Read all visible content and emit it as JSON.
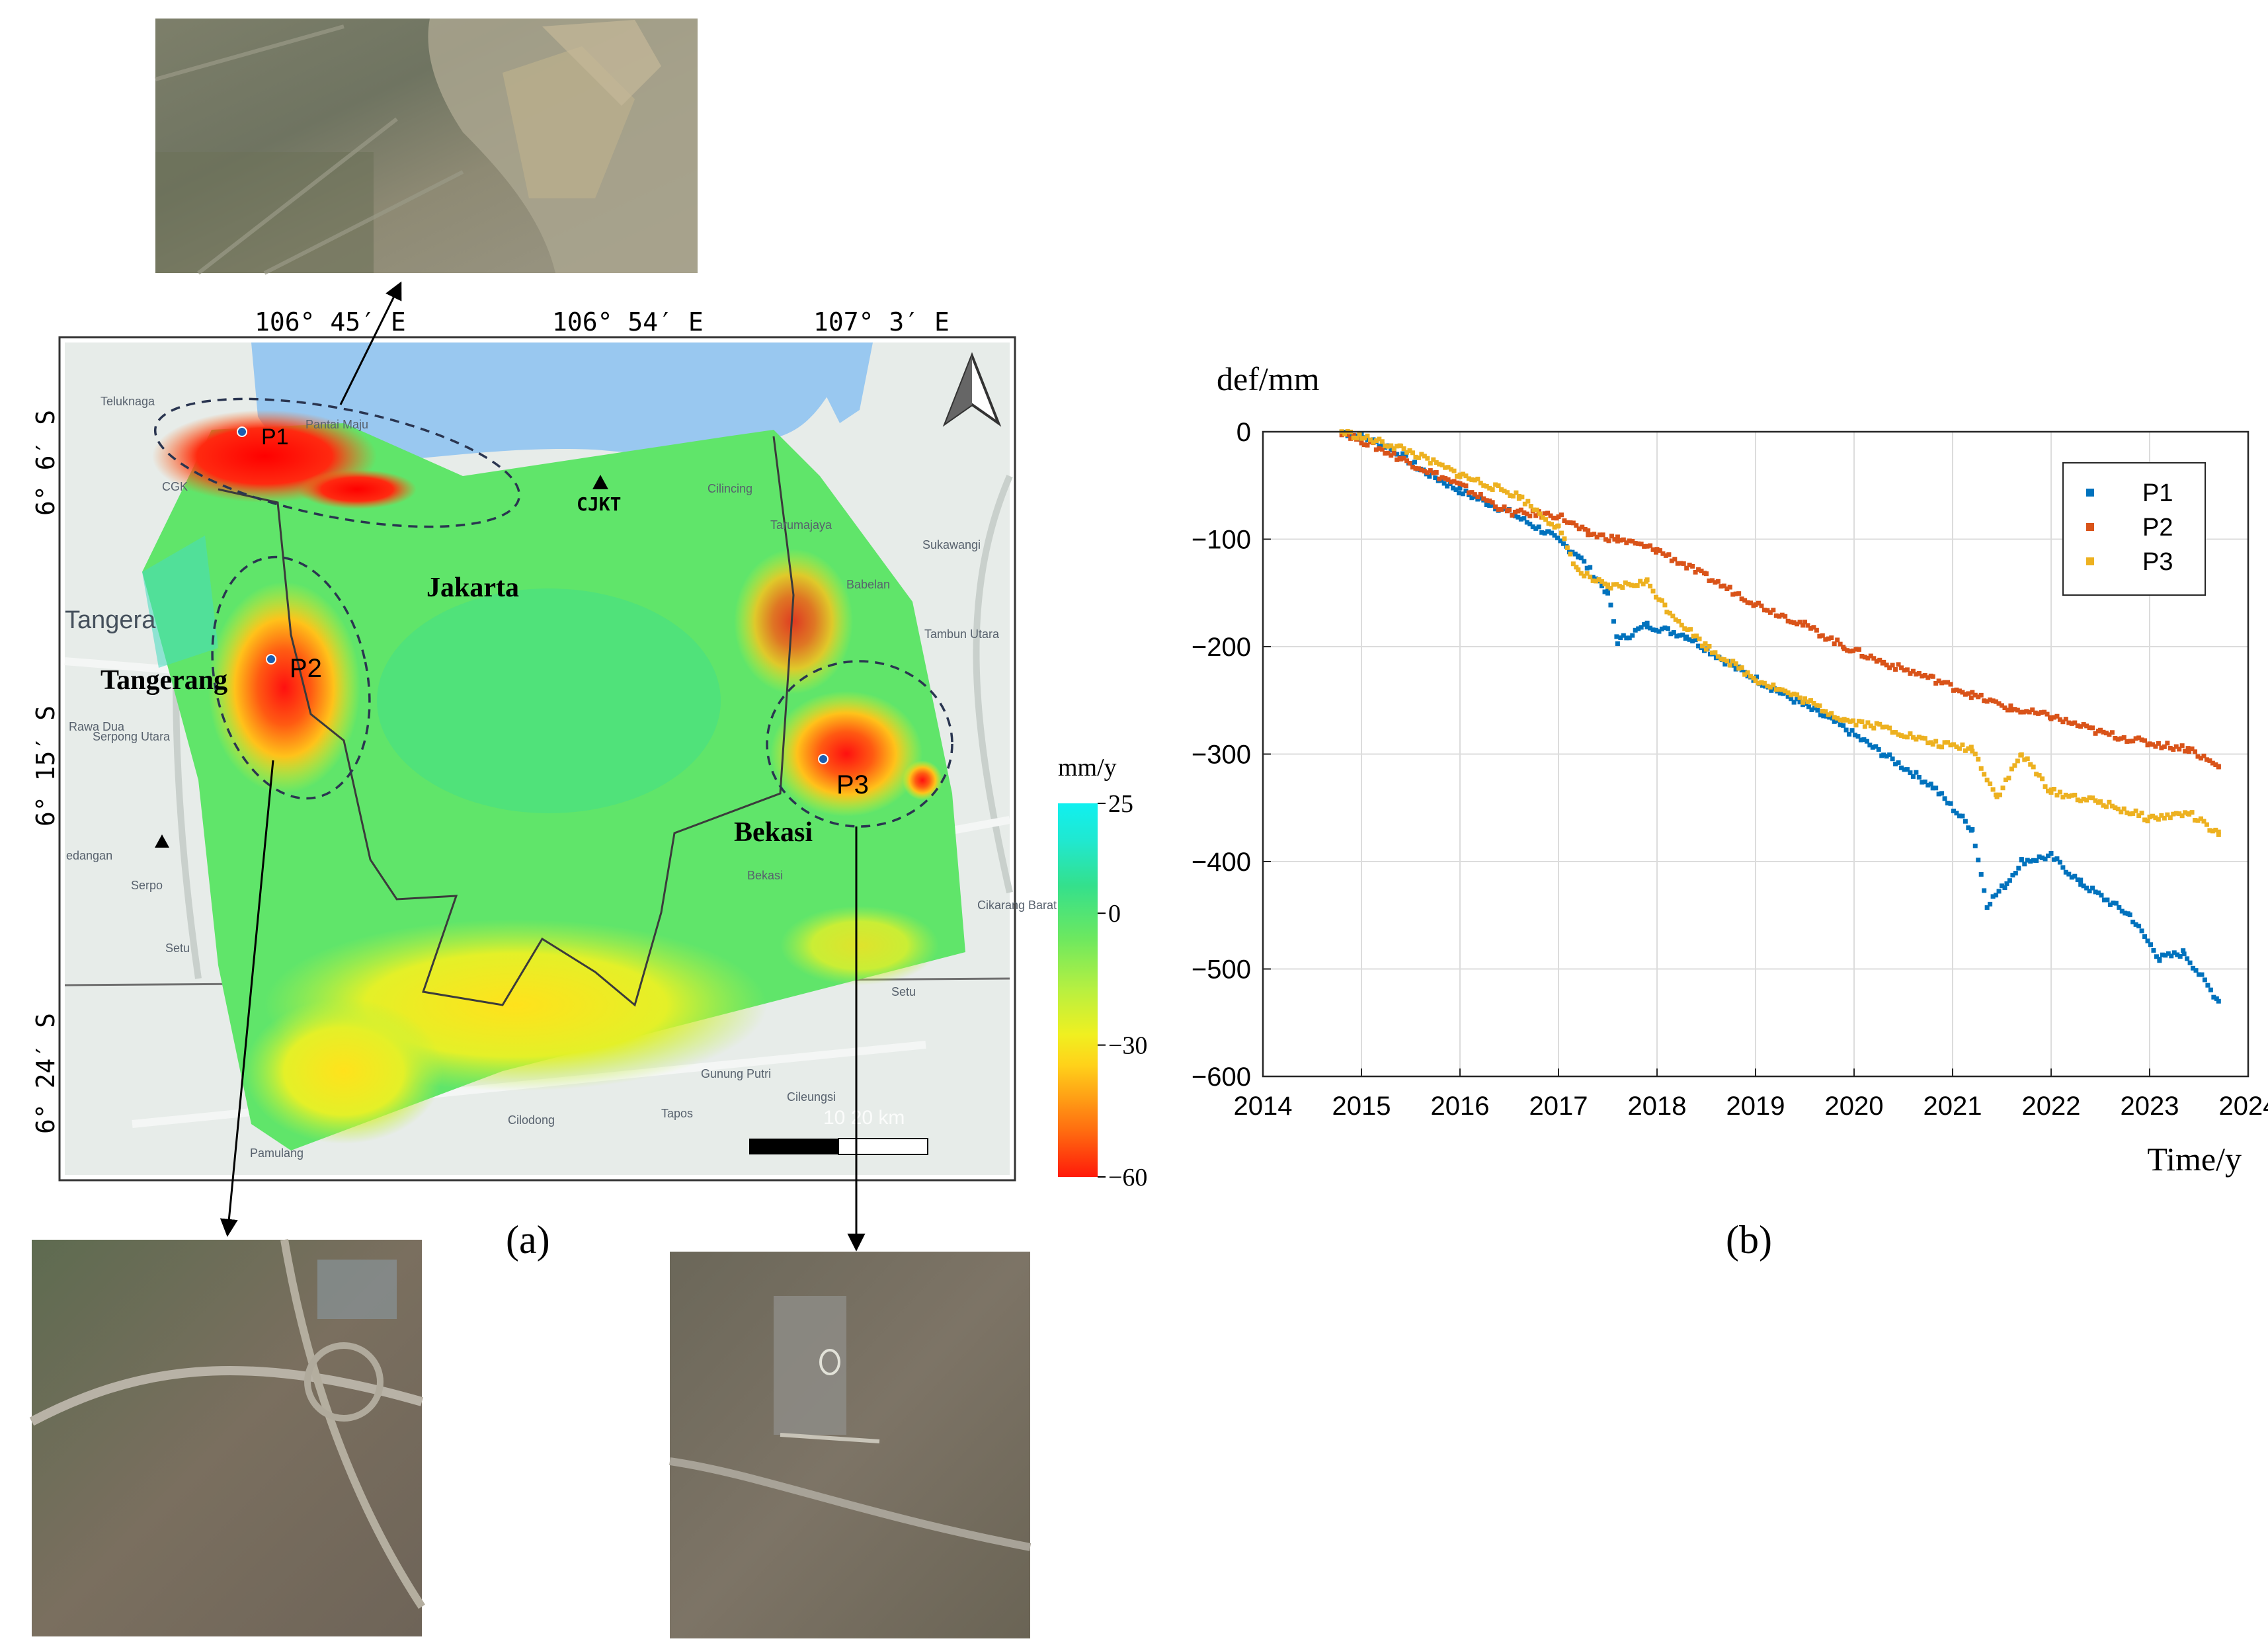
{
  "panel_a": {
    "label": "(a)",
    "lon_ticks": [
      "106° 45′ E",
      "106° 54′ E",
      "107° 3′ E"
    ],
    "lat_ticks": [
      "6° 6′ S",
      "6° 15′ S",
      "6° 24′ S"
    ],
    "regions": [
      "Jakarta",
      "Tangerang",
      "Bekasi"
    ],
    "points": [
      "P1",
      "P2",
      "P3"
    ],
    "station": "CJKT",
    "basemap_labels": [
      "Teluknaga",
      "Pantai Maju",
      "CGK",
      "Tangera",
      "Rawa Dua",
      "Serpong Utara",
      "Serpo",
      "edangan",
      "Setu",
      "Pamulang",
      "Sukawangi",
      "Babelan",
      "Tambun Utara",
      "Tarumajaya",
      "Cikarang Barat",
      "Setu",
      "Gunung Putri",
      "Cileungsi",
      "Tapos",
      "Cilodong",
      "Cilincing",
      "Bekasi"
    ],
    "scale_label": "10  20 km",
    "colorbar": {
      "unit": "mm/y",
      "ticks": [
        "25",
        "0",
        "−30",
        "−60"
      ],
      "tick_values": [
        25,
        0,
        -30,
        -60
      ],
      "range": [
        -60,
        25
      ],
      "colors": [
        "#ff1a0a",
        "#ff6a10",
        "#ffd21a",
        "#f0f020",
        "#b8f040",
        "#6ce860",
        "#34e08c",
        "#20e8d0",
        "#10f0f0"
      ]
    },
    "colors": {
      "sea": "#99c8f0",
      "land": "#e7ece9",
      "dashed": "#2a3550",
      "point": "#1b5fb0"
    }
  },
  "panel_b": {
    "label": "(b)"
  },
  "chart_data": {
    "type": "scatter",
    "title": "",
    "xlabel": "Time/y",
    "ylabel": "def/mm",
    "xlim": [
      2014,
      2024
    ],
    "ylim": [
      -600,
      0
    ],
    "xticks": [
      2014,
      2015,
      2016,
      2017,
      2018,
      2019,
      2020,
      2021,
      2022,
      2023,
      2024
    ],
    "yticks": [
      0,
      -100,
      -200,
      -300,
      -400,
      -500,
      -600
    ],
    "grid": true,
    "legend_position": "top-right",
    "series": [
      {
        "name": "P1",
        "color": "#0072bd",
        "knots": [
          [
            2014.8,
            0
          ],
          [
            2015.0,
            -5
          ],
          [
            2015.3,
            -15
          ],
          [
            2015.6,
            -35
          ],
          [
            2016.0,
            -55
          ],
          [
            2016.5,
            -75
          ],
          [
            2016.9,
            -95
          ],
          [
            2017.2,
            -115
          ],
          [
            2017.5,
            -150
          ],
          [
            2017.6,
            -195
          ],
          [
            2017.9,
            -180
          ],
          [
            2018.3,
            -190
          ],
          [
            2018.8,
            -220
          ],
          [
            2019.3,
            -245
          ],
          [
            2019.8,
            -270
          ],
          [
            2020.3,
            -300
          ],
          [
            2020.8,
            -330
          ],
          [
            2021.2,
            -370
          ],
          [
            2021.35,
            -440
          ],
          [
            2021.55,
            -420
          ],
          [
            2021.7,
            -400
          ],
          [
            2022.0,
            -395
          ],
          [
            2022.3,
            -420
          ],
          [
            2022.8,
            -450
          ],
          [
            2023.1,
            -490
          ],
          [
            2023.35,
            -485
          ],
          [
            2023.7,
            -530
          ]
        ]
      },
      {
        "name": "P2",
        "color": "#d95319",
        "knots": [
          [
            2014.8,
            0
          ],
          [
            2015.0,
            -8
          ],
          [
            2015.4,
            -25
          ],
          [
            2016.0,
            -50
          ],
          [
            2016.5,
            -75
          ],
          [
            2017.0,
            -78
          ],
          [
            2017.3,
            -95
          ],
          [
            2017.6,
            -100
          ],
          [
            2018.0,
            -110
          ],
          [
            2018.5,
            -135
          ],
          [
            2019.0,
            -160
          ],
          [
            2019.5,
            -180
          ],
          [
            2019.9,
            -200
          ],
          [
            2020.3,
            -215
          ],
          [
            2020.8,
            -230
          ],
          [
            2021.2,
            -245
          ],
          [
            2021.6,
            -258
          ],
          [
            2022.0,
            -265
          ],
          [
            2022.5,
            -280
          ],
          [
            2023.0,
            -290
          ],
          [
            2023.4,
            -295
          ],
          [
            2023.7,
            -312
          ]
        ]
      },
      {
        "name": "P3",
        "color": "#edb120",
        "knots": [
          [
            2014.8,
            0
          ],
          [
            2015.0,
            -5
          ],
          [
            2015.4,
            -15
          ],
          [
            2016.0,
            -40
          ],
          [
            2016.6,
            -60
          ],
          [
            2017.0,
            -90
          ],
          [
            2017.2,
            -130
          ],
          [
            2017.5,
            -145
          ],
          [
            2017.9,
            -140
          ],
          [
            2018.1,
            -165
          ],
          [
            2018.5,
            -200
          ],
          [
            2019.0,
            -230
          ],
          [
            2019.5,
            -250
          ],
          [
            2019.9,
            -268
          ],
          [
            2020.3,
            -275
          ],
          [
            2020.8,
            -290
          ],
          [
            2021.2,
            -295
          ],
          [
            2021.45,
            -340
          ],
          [
            2021.7,
            -300
          ],
          [
            2022.0,
            -335
          ],
          [
            2022.5,
            -345
          ],
          [
            2023.0,
            -360
          ],
          [
            2023.4,
            -355
          ],
          [
            2023.7,
            -375
          ]
        ]
      }
    ]
  }
}
